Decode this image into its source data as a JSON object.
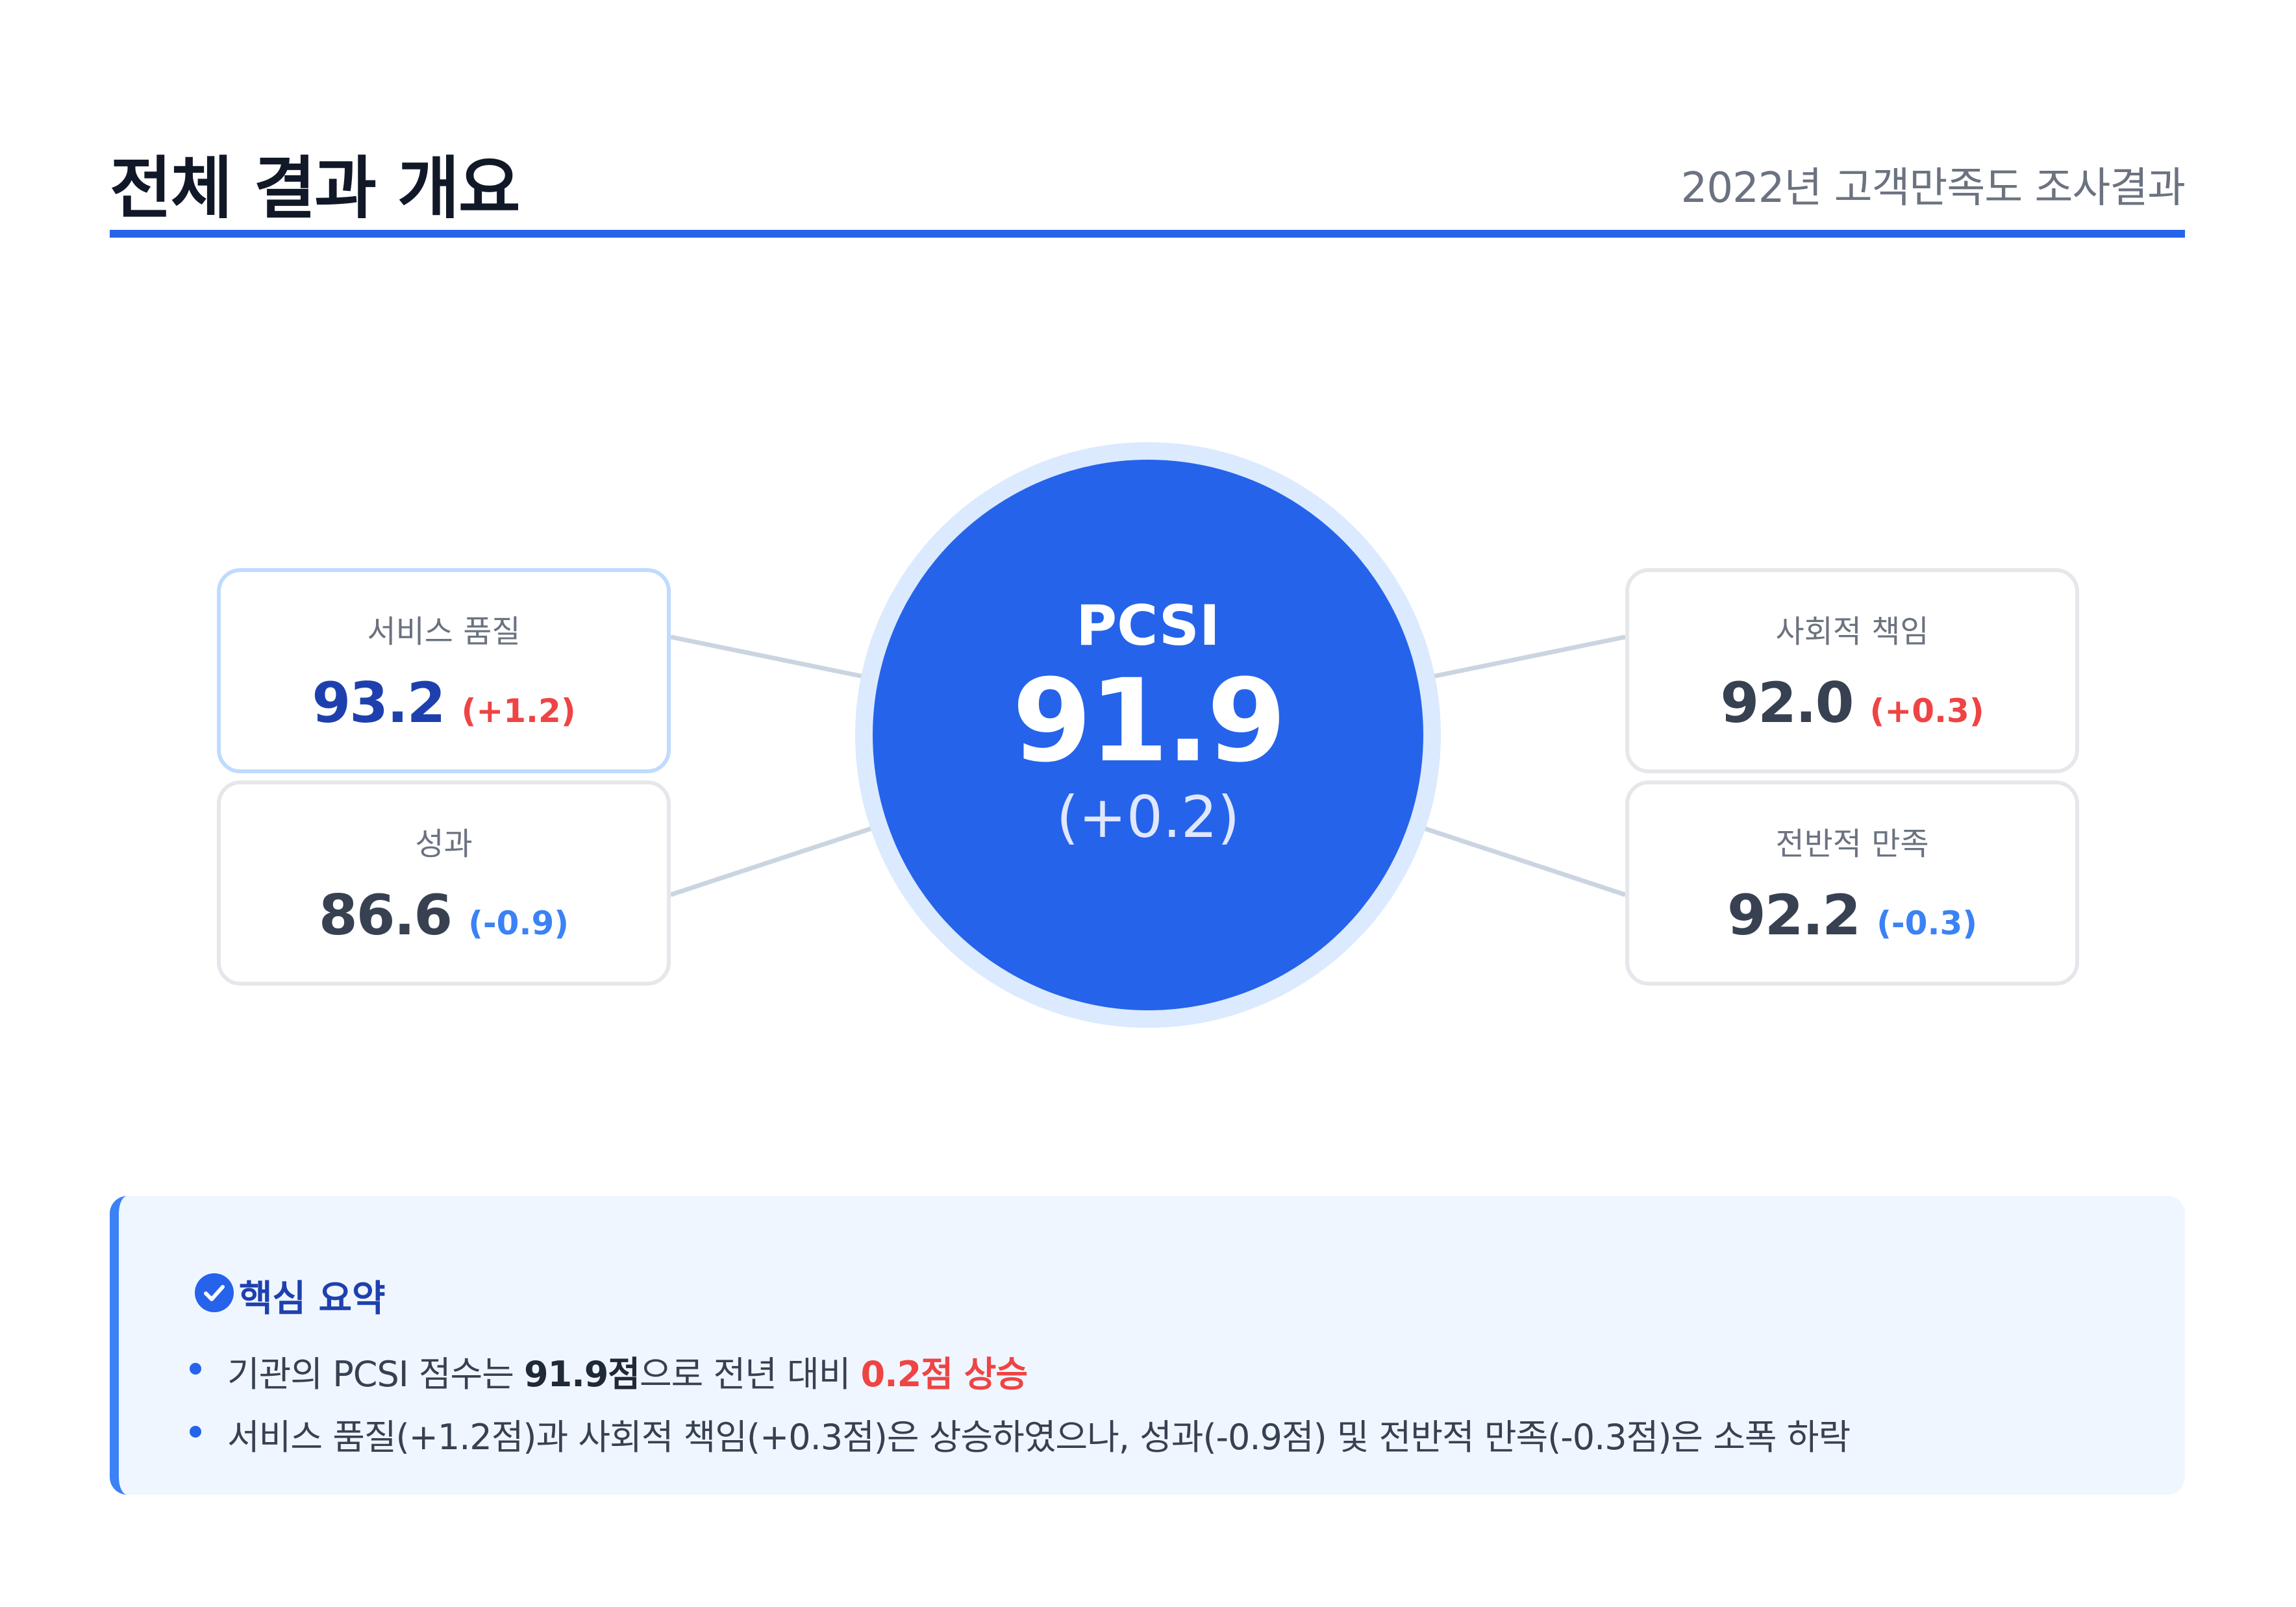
{
  "header": {
    "title": "전체 결과 개요",
    "subtitle": "2022년 고객만족도 조사결과"
  },
  "colors": {
    "accent": "#2563eb",
    "increase": "#ef4444",
    "decrease": "#3b82f6",
    "highlight_value": "#1e40af"
  },
  "center": {
    "label": "PCSI",
    "value": "91.9",
    "delta": "(+0.2)"
  },
  "cards": [
    {
      "label": "서비스 품질",
      "value": "93.2",
      "delta": "(+1.2)",
      "trend": "up",
      "highlighted": true
    },
    {
      "label": "성과",
      "value": "86.6",
      "delta": "(-0.9)",
      "trend": "down",
      "highlighted": false
    },
    {
      "label": "사회적 책임",
      "value": "92.0",
      "delta": "(+0.3)",
      "trend": "up",
      "highlighted": false
    },
    {
      "label": "전반적 만족",
      "value": "92.2",
      "delta": "(-0.3)",
      "trend": "down",
      "highlighted": false
    }
  ],
  "summary": {
    "icon": "check-circle-icon",
    "heading": "핵심 요약",
    "bullet1": {
      "pre": "기관의 PCSI 점수는 ",
      "bold": "91.9점",
      "mid": "으로 전년 대비 ",
      "red": "0.2점 상승"
    },
    "bullet2": "서비스 품질(+1.2점)과 사회적 책임(+0.3점)은 상승하였으나, 성과(-0.9점) 및 전반적 만족(-0.3점)은 소폭 하락"
  }
}
